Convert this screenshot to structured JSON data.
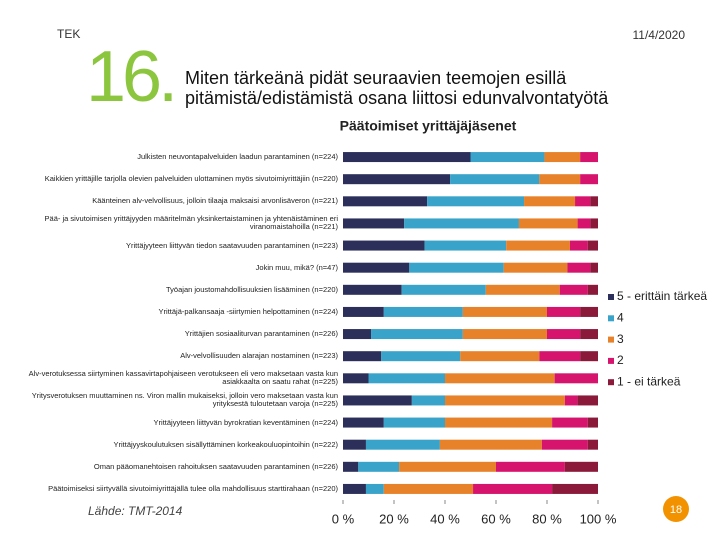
{
  "header": {
    "org": "TEK",
    "date": "11/4/2020",
    "number": "16."
  },
  "footer": {
    "source": "Lähde: TMT-2014",
    "page": "18"
  },
  "chart_data": {
    "type": "bar",
    "orientation": "horizontal",
    "stacked": true,
    "title": "Miten tärkeänä pidät seuraavien teemojen esillä pitämistä/edistämistä osana liittosi edunvalvontatyötä",
    "subtitle": "Päätoimiset yrittäjäjäsenet",
    "categories": [
      "Julkisten neuvontapalveluiden laadun parantaminen (n=224)",
      "Kaikkien yrittäjille tarjolla olevien palveluiden ulottaminen myös sivutoimiyrittäjiin (n=220)",
      "Käänteinen alv-velvollisuus, jolloin tilaaja maksaisi arvonlisäveron (n=221)",
      "Pää- ja sivutoimisen yrittäjyyden määritelmän yksinkertaistaminen ja yhtenäistäminen eri viranomaistahoilla (n=221)",
      "Yrittäjyyteen liittyvän tiedon saatavuuden parantaminen (n=223)",
      "Jokin muu, mikä? (n=47)",
      "Työajan joustomahdollisuuksien lisääminen (n=220)",
      "Yrittäjä-palkansaaja -siirtymien helpottaminen (n=224)",
      "Yrittäjien sosiaaliturvan parantaminen (n=226)",
      "Alv-velvollisuuden alarajan nostaminen (n=223)",
      "Alv-verotuksessa siirtyminen kassavirtapohjaiseen verotukseen eli vero maksetaan vasta kun asiakkaalta on saatu rahat (n=225)",
      "Yritysverotuksen muuttaminen ns. Viron mallin mukaiseksi, jolloin vero maksetaan vasta kun yrityksestä tuloutetaan varoja (n=225)",
      "Yrittäjyyteen liittyvän byrokratian keventäminen (n=224)",
      "Yrittäjyyskoulutuksen sisällyttäminen korkeakouluopintoihin (n=222)",
      "Oman pääomanehtoisen rahoituksen saatavuuden parantaminen (n=226)",
      "Päätoimiseksi siirtyvällä sivutoimiyrittäjällä tulee olla mahdollisuus starttirahaan (n=220)"
    ],
    "series": [
      {
        "name": "5 - erittäin tärkeä",
        "color": "#2b2f5a",
        "values": [
          50,
          42,
          33,
          24,
          32,
          26,
          23,
          16,
          11,
          15,
          10,
          27,
          16,
          9,
          6,
          9
        ]
      },
      {
        "name": "4",
        "color": "#3aa3c9",
        "values": [
          29,
          35,
          38,
          45,
          32,
          37,
          33,
          31,
          36,
          31,
          30,
          13,
          24,
          29,
          16,
          7
        ]
      },
      {
        "name": "3",
        "color": "#e8822a",
        "values": [
          14,
          16,
          20,
          23,
          25,
          25,
          29,
          33,
          33,
          31,
          43,
          47,
          42,
          40,
          38,
          35
        ]
      },
      {
        "name": "2",
        "color": "#d6146e",
        "values": [
          7,
          7,
          6,
          5,
          7,
          9,
          11,
          13,
          13,
          16,
          17,
          5,
          14,
          18,
          27,
          31
        ]
      },
      {
        "name": "1 - ei tärkeä",
        "color": "#8b1a3a",
        "values": [
          0,
          0,
          3,
          3,
          4,
          3,
          4,
          7,
          7,
          7,
          0,
          8,
          4,
          4,
          13,
          18
        ]
      }
    ],
    "xlim": [
      0,
      100
    ],
    "xticks": [
      {
        "value": 0,
        "label": "0 %"
      },
      {
        "value": 20,
        "label": "20 %"
      },
      {
        "value": 40,
        "label": "40 %"
      },
      {
        "value": 60,
        "label": "60 %"
      },
      {
        "value": 80,
        "label": "80 %"
      },
      {
        "value": 100,
        "label": "100 %"
      }
    ],
    "legend": "right"
  }
}
